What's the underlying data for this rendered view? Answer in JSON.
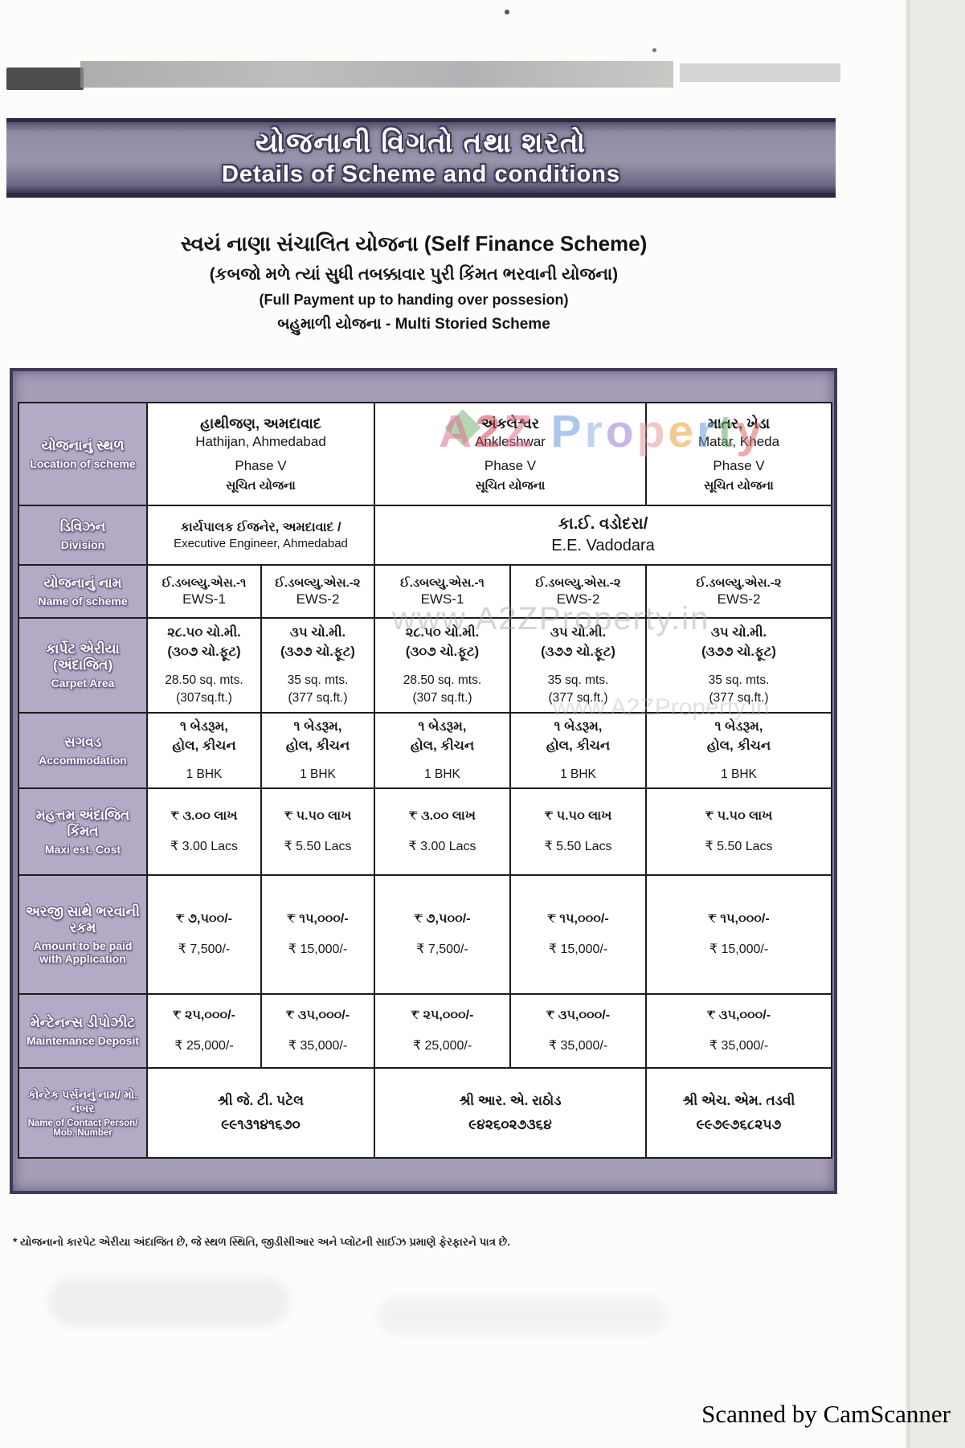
{
  "banner": {
    "title_gu": "યોજનાની વિગતો તથા શરતો",
    "title_en": "Details of Scheme and conditions"
  },
  "subtitle": {
    "line1": "સ્વયં નાણા સંચાલિત યોજના (Self Finance Scheme)",
    "line2": "(કબજો મળે ત્યાં સુધી તબક્કાવાર પુરી કિંમત ભરવાની યોજના)",
    "line3": "(Full Payment up to handing over possesion)",
    "line4": "બહુમાળી યોજના - Multi Storied Scheme"
  },
  "table": {
    "row_headers": [
      {
        "gu": "યોજનાનું સ્થળ",
        "en": "Location of scheme"
      },
      {
        "gu": "ડિવિઝન",
        "en": "Division"
      },
      {
        "gu": "યોજનાનું નામ",
        "en": "Name of scheme"
      },
      {
        "gu": "કાર્પેટ એરીયા (અંદાજિત)",
        "en": "Carpet Area"
      },
      {
        "gu": "સગવડ",
        "en": "Accommodation"
      },
      {
        "gu": "મહત્તમ અંદાજિત કિંમત",
        "en": "Maxi est. Cost"
      },
      {
        "gu": "અરજી સાથે ભરવાની રકમ",
        "en": "Amount to be paid with Application"
      },
      {
        "gu": "મેન્ટેનન્સ ડીપોઝીટ",
        "en": "Maintenance Deposit"
      },
      {
        "gu": "કોન્ટેક પર્સનનું નામ/ મો. નંબર",
        "en": "Name of Contact Person/ Mob. Number"
      }
    ],
    "locations": [
      {
        "gu": "હાથીજણ, અમદાવાદ",
        "en": "Hathijan, Ahmedabad",
        "phase": "Phase V",
        "status_gu": "સૂચિત યોજના"
      },
      {
        "gu": "અંકલેશ્વર",
        "en": "Ankleshwar",
        "phase": "Phase V",
        "status_gu": "સૂચિત યોજના"
      },
      {
        "gu": "માતર, ખેડા",
        "en": "Matar, Kheda",
        "phase": "Phase V",
        "status_gu": "સૂચિત યોજના"
      }
    ],
    "division": [
      {
        "gu": "કાર્યપાલક ઈજનેર, અમદાવાદ /",
        "en": "Executive Engineer, Ahmedabad"
      },
      {
        "gu": "કા.ઈ. વડોદરા/",
        "en": "E.E. Vadodara"
      }
    ],
    "scheme_names": [
      {
        "gu": "ઈ.ડબલ્યુ.એસ.-૧",
        "en": "EWS-1"
      },
      {
        "gu": "ઈ.ડબલ્યુ.એસ.-૨",
        "en": "EWS-2"
      },
      {
        "gu": "ઈ.ડબલ્યુ.એસ.-૧",
        "en": "EWS-1"
      },
      {
        "gu": "ઈ.ડબલ્યુ.એસ.-૨",
        "en": "EWS-2"
      },
      {
        "gu": "ઈ.ડબલ્યુ.એસ.-૨",
        "en": "EWS-2"
      }
    ],
    "carpet_area": [
      {
        "gu1": "૨૮.૫૦ ચો.મી.",
        "gu2": "(૩૦૭ ચો.ફૂટ)",
        "en1": "28.50 sq. mts.",
        "en2": "(307sq.ft.)"
      },
      {
        "gu1": "૩૫ ચો.મી.",
        "gu2": "(૩૭૭ ચો.ફૂટ)",
        "en1": "35 sq. mts.",
        "en2": "(377 sq.ft.)"
      },
      {
        "gu1": "૨૮.૫૦ ચો.મી.",
        "gu2": "(૩૦૭ ચો.ફૂટ)",
        "en1": "28.50 sq. mts.",
        "en2": "(307 sq.ft.)"
      },
      {
        "gu1": "૩૫ ચો.મી.",
        "gu2": "(૩૭૭ ચો.ફૂટ)",
        "en1": "35 sq. mts.",
        "en2": "(377 sq.ft.)"
      },
      {
        "gu1": "૩૫ ચો.મી.",
        "gu2": "(૩૭૭ ચો.ફૂટ)",
        "en1": "35 sq. mts.",
        "en2": "(377 sq.ft.)"
      }
    ],
    "accommodation": [
      {
        "gu1": "૧ બેડરૂમ,",
        "gu2": "હોલ, કીચન",
        "en": "1 BHK"
      },
      {
        "gu1": "૧ બેડરૂમ,",
        "gu2": "હોલ, કીચન",
        "en": "1 BHK"
      },
      {
        "gu1": "૧ બેડરૂમ,",
        "gu2": "હોલ, કીચન",
        "en": "1 BHK"
      },
      {
        "gu1": "૧ બેડરૂમ,",
        "gu2": "હોલ, કીચન",
        "en": "1 BHK"
      },
      {
        "gu1": "૧ બેડરૂમ,",
        "gu2": "હોલ, કીચન",
        "en": "1 BHK"
      }
    ],
    "max_cost": [
      {
        "gu": "₹ ૩.૦૦ લાખ",
        "en": "₹ 3.00 Lacs"
      },
      {
        "gu": "₹ ૫.૫૦ લાખ",
        "en": "₹ 5.50 Lacs"
      },
      {
        "gu": "₹ ૩.૦૦ લાખ",
        "en": "₹ 3.00 Lacs"
      },
      {
        "gu": "₹ ૫.૫૦ લાખ",
        "en": "₹ 5.50 Lacs"
      },
      {
        "gu": "₹ ૫.૫૦ લાખ",
        "en": "₹ 5.50 Lacs"
      }
    ],
    "application_amount": [
      {
        "gu": "₹ ૭,૫૦૦/-",
        "en": "₹ 7,500/-"
      },
      {
        "gu": "₹ ૧૫,૦૦૦/-",
        "en": "₹ 15,000/-"
      },
      {
        "gu": "₹ ૭,૫૦૦/-",
        "en": "₹ 7,500/-"
      },
      {
        "gu": "₹ ૧૫,૦૦૦/-",
        "en": "₹ 15,000/-"
      },
      {
        "gu": "₹ ૧૫,૦૦૦/-",
        "en": "₹ 15,000/-"
      }
    ],
    "maintenance_deposit": [
      {
        "gu": "₹ ૨૫,૦૦૦/-",
        "en": "₹ 25,000/-"
      },
      {
        "gu": "₹ ૩૫,૦૦૦/-",
        "en": "₹ 35,000/-"
      },
      {
        "gu": "₹ ૨૫,૦૦૦/-",
        "en": "₹ 25,000/-"
      },
      {
        "gu": "₹ ૩૫,૦૦૦/-",
        "en": "₹ 35,000/-"
      },
      {
        "gu": "₹ ૩૫,૦૦૦/-",
        "en": "₹ 35,000/-"
      }
    ],
    "contacts": [
      {
        "name_gu": "શ્રી જે. ટી. પટેલ",
        "phone_gu": "૯૯૧૩૧૪૧૬૭૦"
      },
      {
        "name_gu": "શ્રી આર. એ. રાઠોડ",
        "phone_gu": "૯૪૨૬૦૨૭૩૬૪"
      },
      {
        "name_gu": "શ્રી એચ. એમ. તડવી",
        "phone_gu": "૯૯૭૯૭૬૮૨૫૭"
      }
    ]
  },
  "watermarks": {
    "main": "A2Z Property",
    "main_colors": [
      "#e0718e",
      "#cf4a55",
      "#e0718e",
      "#ffffff",
      "#6d97de",
      "#8fb0e6",
      "#9a7ed2",
      "#e39a9d",
      "#e8a23c",
      "#679fd8",
      "#63a861",
      "#d96a62"
    ],
    "url": "www.A2ZProperty.in"
  },
  "footnote": "* યોજનાનો કારપેટ એરીયા અંદાજિત છે, જે સ્થળ સ્થિતિ, જીડીસીઆર અને પ્લોટની સાઈઝ પ્રમાણે ફેરફારને પાત્ર છે.",
  "scanner_credit": "Scanned by CamScanner",
  "colors": {
    "banner_fill": "#8f8ca4",
    "banner_edge": "#2c2a43",
    "row_header_fill": "#b4aac5",
    "frame_fill": "#a69db8",
    "cell_border": "#1d1d1d"
  }
}
